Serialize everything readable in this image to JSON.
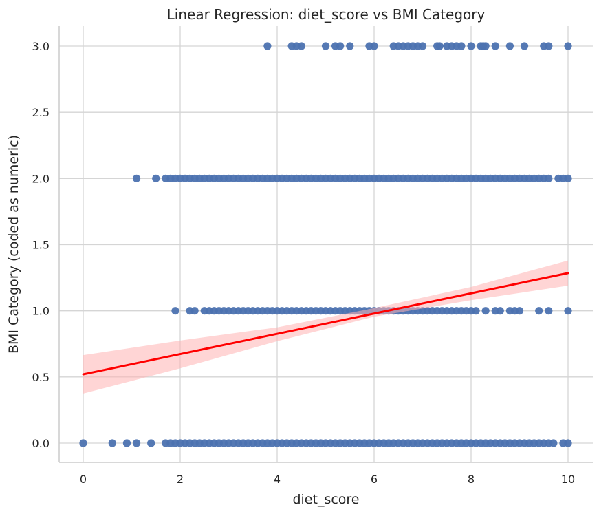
{
  "chart_data": {
    "type": "scatter",
    "title": "Linear Regression: diet_score vs BMI Category",
    "xlabel": "diet_score",
    "ylabel": "BMI Category (coded as numeric)",
    "xlim": [
      -0.5,
      10.5
    ],
    "ylim": [
      -0.15,
      3.15
    ],
    "xticks": [
      0,
      2,
      4,
      6,
      8,
      10
    ],
    "xtick_labels": [
      "0",
      "2",
      "4",
      "6",
      "8",
      "10"
    ],
    "yticks": [
      0,
      0.5,
      1,
      1.5,
      2,
      2.5,
      3
    ],
    "ytick_labels": [
      "0.0",
      "0.5",
      "1.0",
      "1.5",
      "2.0",
      "2.5",
      "3.0"
    ],
    "grid": true,
    "point_color": "#4c72b0",
    "line_color": "#ff0000",
    "band_color": "#ffb3b3",
    "series": [
      {
        "category": 3,
        "x": [
          3.8,
          4.3,
          4.4,
          4.5,
          5.0,
          5.2,
          5.3,
          5.5,
          5.9,
          6.0,
          6.4,
          6.5,
          6.6,
          6.7,
          6.8,
          6.9,
          7.0,
          7.3,
          7.35,
          7.5,
          7.6,
          7.7,
          7.8,
          8.0,
          8.2,
          8.25,
          8.3,
          8.5,
          8.8,
          9.1,
          9.5,
          9.6,
          10.0
        ]
      },
      {
        "category": 2,
        "x": [
          1.1,
          1.5,
          1.7,
          1.8,
          1.9,
          2.0,
          2.1,
          2.2,
          2.3,
          2.4,
          2.5,
          2.6,
          2.7,
          2.8,
          2.9,
          3.0,
          3.1,
          3.2,
          3.3,
          3.4,
          3.5,
          3.6,
          3.7,
          3.8,
          3.9,
          4.0,
          4.1,
          4.2,
          4.3,
          4.4,
          4.5,
          4.6,
          4.7,
          4.8,
          4.9,
          5.0,
          5.1,
          5.2,
          5.3,
          5.4,
          5.5,
          5.6,
          5.7,
          5.8,
          5.9,
          6.0,
          6.1,
          6.2,
          6.3,
          6.4,
          6.5,
          6.6,
          6.7,
          6.8,
          6.9,
          7.0,
          7.1,
          7.2,
          7.3,
          7.4,
          7.5,
          7.6,
          7.7,
          7.8,
          7.9,
          8.0,
          8.1,
          8.2,
          8.3,
          8.4,
          8.5,
          8.6,
          8.7,
          8.8,
          8.9,
          9.0,
          9.1,
          9.2,
          9.3,
          9.4,
          9.5,
          9.6,
          9.8,
          9.9,
          10.0
        ]
      },
      {
        "category": 1,
        "x": [
          1.9,
          2.2,
          2.3,
          2.5,
          2.6,
          2.7,
          2.8,
          2.9,
          3.0,
          3.1,
          3.2,
          3.3,
          3.4,
          3.5,
          3.6,
          3.7,
          3.8,
          3.9,
          4.0,
          4.1,
          4.2,
          4.3,
          4.4,
          4.5,
          4.6,
          4.7,
          4.8,
          4.9,
          5.0,
          5.1,
          5.2,
          5.3,
          5.4,
          5.5,
          5.6,
          5.7,
          5.8,
          5.9,
          6.0,
          6.1,
          6.2,
          6.3,
          6.4,
          6.5,
          6.6,
          6.7,
          6.8,
          6.9,
          7.0,
          7.1,
          7.2,
          7.3,
          7.4,
          7.5,
          7.6,
          7.7,
          7.8,
          7.9,
          8.0,
          8.1,
          8.3,
          8.5,
          8.6,
          8.8,
          8.9,
          9.0,
          9.4,
          9.6,
          10.0
        ]
      },
      {
        "category": 0,
        "x": [
          0.0,
          0.6,
          0.9,
          1.1,
          1.4,
          1.7,
          1.8,
          1.9,
          2.0,
          2.1,
          2.2,
          2.3,
          2.4,
          2.5,
          2.6,
          2.7,
          2.8,
          2.9,
          3.0,
          3.1,
          3.2,
          3.3,
          3.4,
          3.5,
          3.6,
          3.7,
          3.8,
          3.9,
          4.0,
          4.1,
          4.2,
          4.3,
          4.4,
          4.5,
          4.6,
          4.7,
          4.8,
          4.9,
          5.0,
          5.1,
          5.2,
          5.3,
          5.4,
          5.5,
          5.6,
          5.7,
          5.8,
          5.9,
          6.0,
          6.1,
          6.2,
          6.3,
          6.4,
          6.5,
          6.6,
          6.7,
          6.8,
          6.9,
          7.0,
          7.1,
          7.2,
          7.3,
          7.4,
          7.5,
          7.6,
          7.7,
          7.8,
          7.9,
          8.0,
          8.1,
          8.2,
          8.3,
          8.4,
          8.5,
          8.6,
          8.7,
          8.8,
          8.9,
          9.0,
          9.1,
          9.2,
          9.3,
          9.4,
          9.5,
          9.6,
          9.7,
          9.9,
          10.0
        ]
      }
    ],
    "regression_line": {
      "x": [
        0,
        10
      ],
      "y": [
        0.52,
        1.285
      ]
    },
    "confidence_band": {
      "x": [
        0,
        2,
        4,
        6,
        8,
        10
      ],
      "lower": [
        0.375,
        0.565,
        0.77,
        0.955,
        1.08,
        1.19
      ],
      "upper": [
        0.665,
        0.775,
        0.875,
        1.02,
        1.18,
        1.38
      ]
    }
  }
}
